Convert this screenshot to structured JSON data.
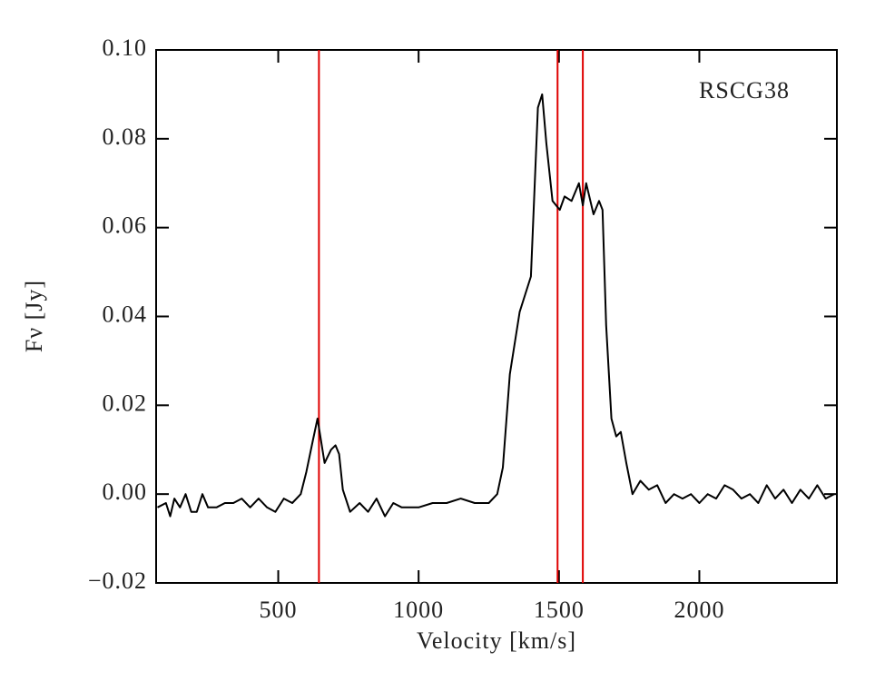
{
  "chart_data": {
    "type": "line",
    "annotation": "RSCG38",
    "xlabel": "Velocity [km/s]",
    "ylabel": "Fν [Jy]",
    "xlim": [
      65,
      2490
    ],
    "ylim": [
      -0.02,
      0.1
    ],
    "xticks": [
      500,
      1000,
      1500,
      2000
    ],
    "yticks": [
      {
        "value": -0.02,
        "label": "−0.02"
      },
      {
        "value": 0,
        "label": "0.00"
      },
      {
        "value": 0.02,
        "label": "0.02"
      },
      {
        "value": 0.04,
        "label": "0.04"
      },
      {
        "value": 0.06,
        "label": "0.06"
      },
      {
        "value": 0.08,
        "label": "0.08"
      },
      {
        "value": 0.1,
        "label": "0.10"
      }
    ],
    "vlines": {
      "color": "#e00000",
      "x": [
        645,
        1495,
        1585
      ]
    },
    "series": [
      {
        "color": "#000000",
        "x": [
          70,
          100,
          115,
          130,
          150,
          170,
          190,
          210,
          230,
          250,
          280,
          310,
          340,
          370,
          400,
          430,
          460,
          490,
          520,
          550,
          580,
          600,
          623,
          640,
          665,
          688,
          704,
          717,
          730,
          756,
          790,
          820,
          850,
          880,
          910,
          940,
          970,
          1000,
          1050,
          1100,
          1150,
          1200,
          1250,
          1280,
          1300,
          1325,
          1360,
          1380,
          1400,
          1425,
          1440,
          1455,
          1477,
          1503,
          1520,
          1545,
          1571,
          1585,
          1597,
          1623,
          1643,
          1655,
          1668,
          1687,
          1704,
          1720,
          1740,
          1762,
          1790,
          1820,
          1850,
          1880,
          1910,
          1940,
          1970,
          2000,
          2030,
          2060,
          2090,
          2120,
          2150,
          2180,
          2210,
          2240,
          2270,
          2300,
          2330,
          2360,
          2390,
          2420,
          2450,
          2480
        ],
        "values": [
          -0.003,
          -0.002,
          -0.005,
          -0.001,
          -0.003,
          0.0,
          -0.004,
          -0.004,
          0.0,
          -0.003,
          -0.003,
          -0.002,
          -0.002,
          -0.001,
          -0.003,
          -0.001,
          -0.003,
          -0.004,
          -0.001,
          -0.002,
          0.0,
          0.005,
          0.012,
          0.017,
          0.007,
          0.01,
          0.011,
          0.009,
          0.001,
          -0.004,
          -0.002,
          -0.004,
          -0.001,
          -0.005,
          -0.002,
          -0.003,
          -0.003,
          -0.003,
          -0.002,
          -0.002,
          -0.001,
          -0.002,
          -0.002,
          0.0,
          0.006,
          0.027,
          0.041,
          0.045,
          0.049,
          0.087,
          0.09,
          0.079,
          0.066,
          0.064,
          0.067,
          0.066,
          0.07,
          0.065,
          0.07,
          0.063,
          0.066,
          0.064,
          0.038,
          0.017,
          0.013,
          0.014,
          0.007,
          0.0,
          0.003,
          0.001,
          0.002,
          -0.002,
          0.0,
          -0.001,
          0.0,
          -0.002,
          0.0,
          -0.001,
          0.002,
          0.001,
          -0.001,
          0.0,
          -0.002,
          0.002,
          -0.001,
          0.001,
          -0.002,
          0.001,
          -0.001,
          0.002,
          -0.001,
          0.0
        ]
      }
    ]
  }
}
